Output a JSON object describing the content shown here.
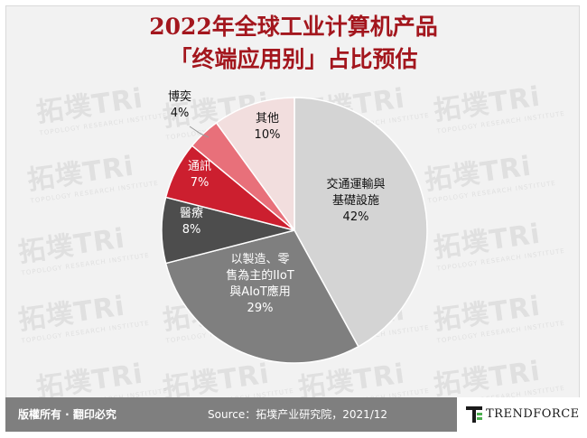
{
  "title_line1": "2022年全球工业计算机产品",
  "title_line2": "「终端应用别」占比预估",
  "chart_data": {
    "type": "pie",
    "categories": [
      "交通運輸與基礎設施",
      "以製造、零售為主的IIoT與AIoT應用",
      "醫療",
      "通訊",
      "博奕",
      "其他"
    ],
    "values": [
      42,
      29,
      8,
      7,
      4,
      10
    ],
    "unit": "%",
    "colors": [
      "#d4d4d4",
      "#7f7f7f",
      "#4d4d4d",
      "#cc1f2f",
      "#e8707a",
      "#f2dede"
    ],
    "labels": [
      {
        "lines": [
          "交通運輸與",
          "基礎設施",
          "42%"
        ]
      },
      {
        "lines": [
          "以製造、零",
          "售為主的IIoT",
          "與AIoT應用",
          "29%"
        ]
      },
      {
        "lines": [
          "醫療",
          "8%"
        ]
      },
      {
        "lines": [
          "通訊",
          "7%"
        ]
      },
      {
        "lines": [
          "博奕",
          "4%"
        ]
      },
      {
        "lines": [
          "其他",
          "10%"
        ]
      }
    ],
    "start_angle_deg": 0,
    "direction": "clockwise"
  },
  "watermark_text": "拓墣TRi",
  "watermark_sub": "TOPOLOGY RESEARCH INSTITUTE",
  "footer": {
    "rights": "版權所有 · 翻印必究",
    "source": "Source：拓墣产业研究院，2021/12",
    "logo_text": "TRENDFORCE"
  }
}
